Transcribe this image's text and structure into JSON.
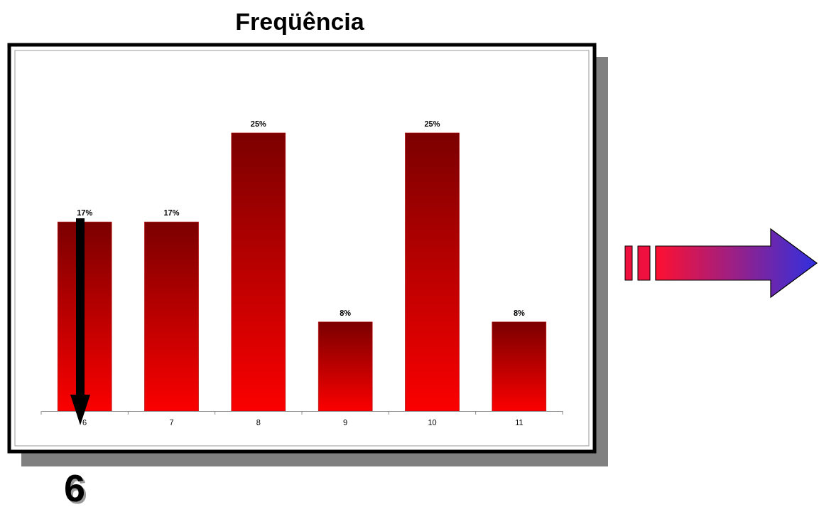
{
  "chart_data": {
    "type": "bar",
    "title": "Freqüência",
    "categories": [
      "6",
      "7",
      "8",
      "9",
      "10",
      "11"
    ],
    "values": [
      17,
      17,
      25,
      8,
      25,
      8
    ],
    "value_labels": [
      "17%",
      "17%",
      "25%",
      "8%",
      "25%",
      "8%"
    ],
    "color": "#b00000",
    "annotations": [
      "6"
    ]
  }
}
